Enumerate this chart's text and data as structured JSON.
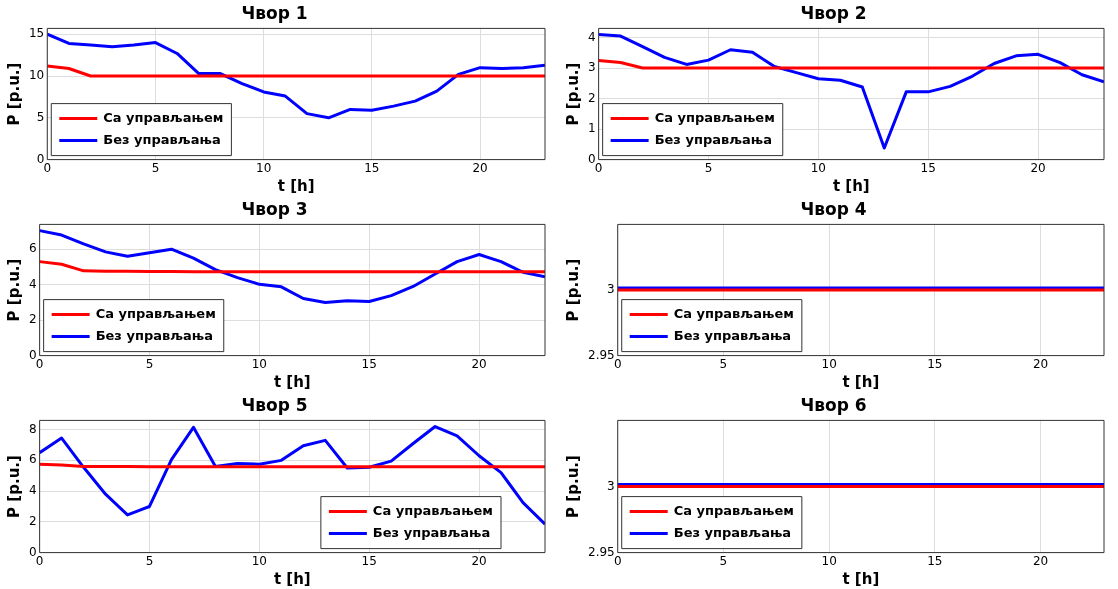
{
  "chart_data": [
    {
      "type": "line",
      "title": "Чвор 1",
      "xlabel": "t [h]",
      "ylabel": "P [p.u.]",
      "x": [
        0,
        1,
        2,
        3,
        4,
        5,
        6,
        7,
        8,
        9,
        10,
        11,
        12,
        13,
        14,
        15,
        16,
        17,
        18,
        19,
        20,
        21,
        22,
        23
      ],
      "xlim": [
        0,
        23
      ],
      "xticks": [
        0,
        5,
        10,
        15,
        20
      ],
      "ylim": [
        0,
        15.7
      ],
      "yticks": [
        0,
        5,
        10,
        15
      ],
      "grid": true,
      "legend": "bottom left",
      "series": [
        {
          "name": "Са управљањем",
          "color": "#ff0000",
          "values": [
            11.2,
            10.9,
            10,
            10,
            10,
            10,
            10,
            10,
            10,
            10,
            10,
            10,
            10,
            10,
            10,
            10,
            10,
            10,
            10,
            10,
            10,
            10,
            10,
            10
          ]
        },
        {
          "name": "Без управљања",
          "color": "#0000ff",
          "values": [
            15,
            13.9,
            13.7,
            13.5,
            13.7,
            14,
            12.7,
            10.3,
            10.3,
            9.1,
            8.1,
            7.6,
            5.5,
            5.0,
            6.0,
            5.9,
            6.4,
            7.0,
            8.2,
            10.2,
            11.0,
            10.9,
            11,
            11.3
          ]
        }
      ]
    },
    {
      "type": "line",
      "title": "Чвор 2",
      "xlabel": "t [h]",
      "ylabel": "P [p.u.]",
      "x": [
        0,
        1,
        2,
        3,
        4,
        5,
        6,
        7,
        8,
        9,
        10,
        11,
        12,
        13,
        14,
        15,
        16,
        17,
        18,
        19,
        20,
        21,
        22,
        23
      ],
      "xlim": [
        0,
        23
      ],
      "xticks": [
        0,
        5,
        10,
        15,
        20
      ],
      "ylim": [
        0,
        4.3
      ],
      "yticks": [
        0,
        1,
        2,
        3,
        4
      ],
      "grid": true,
      "legend": "bottom left",
      "series": [
        {
          "name": "Са управљањем",
          "color": "#ff0000",
          "values": [
            3.25,
            3.18,
            3.0,
            3,
            3,
            3,
            3,
            3,
            3,
            3,
            3,
            3,
            3,
            3,
            3,
            3,
            3,
            3,
            3,
            3,
            3,
            3,
            3,
            3
          ]
        },
        {
          "name": "Без управљања",
          "color": "#0000ff",
          "values": [
            4.1,
            4.05,
            3.7,
            3.35,
            3.12,
            3.26,
            3.6,
            3.52,
            3.05,
            2.85,
            2.65,
            2.6,
            2.38,
            0.38,
            2.22,
            2.22,
            2.4,
            2.73,
            3.15,
            3.4,
            3.45,
            3.18,
            2.78,
            2.55
          ]
        }
      ]
    },
    {
      "type": "line",
      "title": "Чвор 3",
      "xlabel": "t [h]",
      "ylabel": "P [p.u.]",
      "x": [
        0,
        1,
        2,
        3,
        4,
        5,
        6,
        7,
        8,
        9,
        10,
        11,
        12,
        13,
        14,
        15,
        16,
        17,
        18,
        19,
        20,
        21,
        22,
        23
      ],
      "xlim": [
        0,
        23
      ],
      "xticks": [
        0,
        5,
        10,
        15,
        20
      ],
      "ylim": [
        0,
        7.4
      ],
      "yticks": [
        0,
        2,
        4,
        6
      ],
      "grid": true,
      "legend": "bottom left",
      "series": [
        {
          "name": "Са управљањем",
          "color": "#ff0000",
          "values": [
            5.3,
            5.15,
            4.78,
            4.76,
            4.76,
            4.75,
            4.75,
            4.73,
            4.73,
            4.73,
            4.73,
            4.73,
            4.73,
            4.73,
            4.73,
            4.73,
            4.73,
            4.73,
            4.73,
            4.73,
            4.73,
            4.73,
            4.73,
            4.73
          ]
        },
        {
          "name": "Без управљања",
          "color": "#0000ff",
          "values": [
            7.05,
            6.8,
            6.3,
            5.85,
            5.6,
            5.8,
            6.0,
            5.5,
            4.85,
            4.4,
            4.02,
            3.88,
            3.22,
            3.0,
            3.1,
            3.05,
            3.38,
            3.9,
            4.6,
            5.3,
            5.7,
            5.3,
            4.7,
            4.45
          ]
        }
      ]
    },
    {
      "type": "line",
      "title": "Чвор 4",
      "xlabel": "t [h]",
      "ylabel": "P [p.u.]",
      "x": [
        0,
        1,
        2,
        3,
        4,
        5,
        6,
        7,
        8,
        9,
        10,
        11,
        12,
        13,
        14,
        15,
        16,
        17,
        18,
        19,
        20,
        21,
        22,
        23
      ],
      "xlim": [
        0,
        23
      ],
      "xticks": [
        0,
        5,
        10,
        15,
        20
      ],
      "ylim": [
        2.95,
        3.05
      ],
      "yticks": [
        2.95,
        3
      ],
      "grid": true,
      "legend": "bottom left",
      "series": [
        {
          "name": "Са управљањем",
          "color": "#ff0000",
          "values": [
            3,
            3,
            3,
            3,
            3,
            3,
            3,
            3,
            3,
            3,
            3,
            3,
            3,
            3,
            3,
            3,
            3,
            3,
            3,
            3,
            3,
            3,
            3,
            3
          ]
        },
        {
          "name": "Без управљања",
          "color": "#0000ff",
          "values": [
            3.0015,
            3.0015,
            3.0015,
            3.0015,
            3.0015,
            3.0015,
            3.0015,
            3.0015,
            3.0015,
            3.0015,
            3.0015,
            3.0015,
            3.0015,
            3.0015,
            3.0015,
            3.0015,
            3.0015,
            3.0015,
            3.0015,
            3.0015,
            3.0015,
            3.0015,
            3.0015,
            3.0015
          ]
        }
      ]
    },
    {
      "type": "line",
      "title": "Чвор 5",
      "xlabel": "t [h]",
      "ylabel": "P [p.u.]",
      "x": [
        0,
        1,
        2,
        3,
        4,
        5,
        6,
        7,
        8,
        9,
        10,
        11,
        12,
        13,
        14,
        15,
        16,
        17,
        18,
        19,
        20,
        21,
        22,
        23
      ],
      "xlim": [
        0,
        23
      ],
      "xticks": [
        0,
        5,
        10,
        15,
        20
      ],
      "ylim": [
        0,
        8.6
      ],
      "yticks": [
        0,
        2,
        4,
        6,
        8
      ],
      "grid": true,
      "legend": "bottom right",
      "series": [
        {
          "name": "Са управљањем",
          "color": "#ff0000",
          "values": [
            5.75,
            5.7,
            5.6,
            5.6,
            5.6,
            5.58,
            5.58,
            5.58,
            5.58,
            5.58,
            5.58,
            5.58,
            5.58,
            5.58,
            5.58,
            5.58,
            5.58,
            5.58,
            5.58,
            5.58,
            5.58,
            5.58,
            5.58,
            5.58
          ]
        },
        {
          "name": "Без управљања",
          "color": "#0000ff",
          "values": [
            6.5,
            7.45,
            5.55,
            3.8,
            2.45,
            3.0,
            6.05,
            8.15,
            5.6,
            5.8,
            5.75,
            6.0,
            6.95,
            7.3,
            5.5,
            5.55,
            5.95,
            7.1,
            8.2,
            7.6,
            6.3,
            5.2,
            3.25,
            1.85
          ]
        }
      ]
    },
    {
      "type": "line",
      "title": "Чвор 6",
      "xlabel": "t [h]",
      "ylabel": "P [p.u.]",
      "x": [
        0,
        1,
        2,
        3,
        4,
        5,
        6,
        7,
        8,
        9,
        10,
        11,
        12,
        13,
        14,
        15,
        16,
        17,
        18,
        19,
        20,
        21,
        22,
        23
      ],
      "xlim": [
        0,
        23
      ],
      "xticks": [
        0,
        5,
        10,
        15,
        20
      ],
      "ylim": [
        2.95,
        3.05
      ],
      "yticks": [
        2.95,
        3
      ],
      "grid": true,
      "legend": "bottom left",
      "series": [
        {
          "name": "Са управљањем",
          "color": "#ff0000",
          "values": [
            3,
            3,
            3,
            3,
            3,
            3,
            3,
            3,
            3,
            3,
            3,
            3,
            3,
            3,
            3,
            3,
            3,
            3,
            3,
            3,
            3,
            3,
            3,
            3
          ]
        },
        {
          "name": "Без управљања",
          "color": "#0000ff",
          "values": [
            3.0015,
            3.0015,
            3.0015,
            3.0015,
            3.0015,
            3.0015,
            3.0015,
            3.0015,
            3.0015,
            3.0015,
            3.0015,
            3.0015,
            3.0015,
            3.0015,
            3.0015,
            3.0015,
            3.0015,
            3.0015,
            3.0015,
            3.0015,
            3.0015,
            3.0015,
            3.0015,
            3.0015
          ]
        }
      ]
    }
  ]
}
